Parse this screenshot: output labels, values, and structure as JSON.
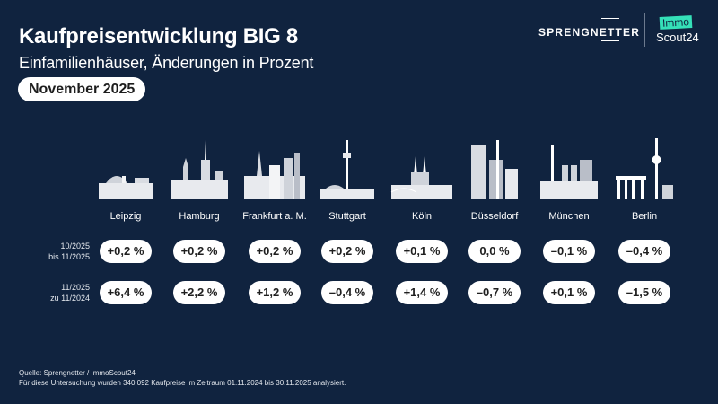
{
  "header": {
    "title": "Kaufpreisentwicklung BIG 8",
    "subtitle": "Einfamilienhäuser, Änderungen in Prozent",
    "period": "November 2025"
  },
  "logos": {
    "sprengnetter": "SPRENGNETTER",
    "immo": "Immo",
    "scout": "Scout24",
    "immo_color": "#35e0b8"
  },
  "colors": {
    "background": "#10233f",
    "pill": "#ffffff"
  },
  "row_labels": [
    {
      "line1": "10/2025",
      "line2": "bis 11/2025"
    },
    {
      "line1": "11/2025",
      "line2": "zu 11/2024"
    }
  ],
  "cities": [
    {
      "name": "Leipzig",
      "mom": "+0,2 %",
      "yoy": "+6,4 %"
    },
    {
      "name": "Hamburg",
      "mom": "+0,2 %",
      "yoy": "+2,2 %"
    },
    {
      "name": "Frankfurt a. M.",
      "mom": "+0,2 %",
      "yoy": "+1,2 %"
    },
    {
      "name": "Stuttgart",
      "mom": "+0,2 %",
      "yoy": "–0,4 %"
    },
    {
      "name": "Köln",
      "mom": "+0,1 %",
      "yoy": "+1,4 %"
    },
    {
      "name": "Düsseldorf",
      "mom": "0,0 %",
      "yoy": "–0,7 %"
    },
    {
      "name": "München",
      "mom": "–0,1 %",
      "yoy": "+0,1 %"
    },
    {
      "name": "Berlin",
      "mom": "–0,4 %",
      "yoy": "–1,5 %"
    }
  ],
  "footer": {
    "source": "Quelle: Sprengnetter / ImmoScout24",
    "note": "Für diese Untersuchung wurden 340.092 Kaufpreise im Zeitraum 01.11.2024 bis 30.11.2025 analysiert."
  }
}
